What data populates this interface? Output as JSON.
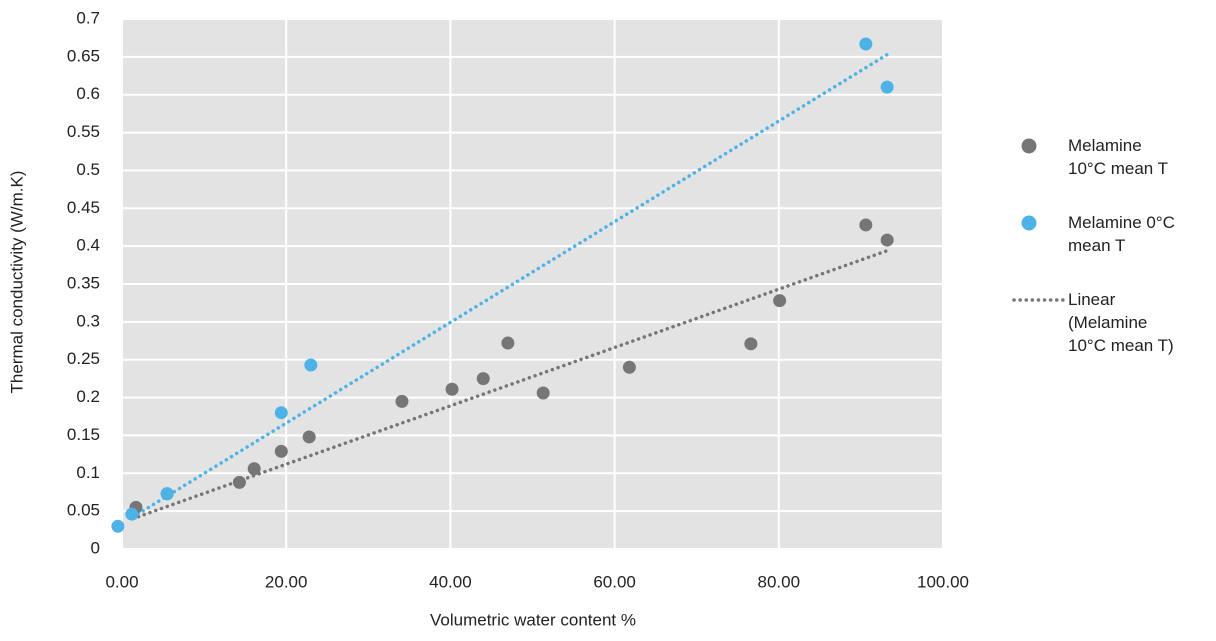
{
  "chart_data": {
    "type": "scatter",
    "xlabel": "Volumetric water content %",
    "ylabel": "Thermal conductivity (W/m.K)",
    "xlim": [
      0,
      100
    ],
    "xticks": [
      {
        "value": 0,
        "label": "0.00"
      },
      {
        "value": 20,
        "label": "20.00"
      },
      {
        "value": 40,
        "label": "40.00"
      },
      {
        "value": 60,
        "label": "60.00"
      },
      {
        "value": 80,
        "label": "80.00"
      },
      {
        "value": 100,
        "label": "100.00"
      }
    ],
    "ylim": [
      0,
      0.7
    ],
    "yticks": [
      0,
      0.05,
      0.1,
      0.15,
      0.2,
      0.25,
      0.3,
      0.35,
      0.4,
      0.45,
      0.5,
      0.55,
      0.6,
      0.65,
      0.7
    ],
    "grid": true,
    "legend": "right",
    "series": [
      {
        "name": "Melamine 10°C mean T",
        "color": "#767676",
        "x": [
          1.7,
          5.5,
          14.3,
          16.1,
          19.4,
          22.8,
          34.1,
          40.2,
          44.0,
          47.0,
          51.3,
          61.8,
          76.6,
          80.1,
          90.6,
          93.2
        ],
        "values": [
          0.055,
          0.073,
          0.088,
          0.106,
          0.129,
          0.148,
          0.195,
          0.211,
          0.225,
          0.272,
          0.206,
          0.24,
          0.271,
          0.328,
          0.428,
          0.408
        ]
      },
      {
        "name": "Melamine 0°C mean T",
        "color": "#4db3e6",
        "x": [
          -0.5,
          1.2,
          5.5,
          19.4,
          23.0,
          90.6,
          93.2
        ],
        "values": [
          0.03,
          0.046,
          0.073,
          0.18,
          0.243,
          0.667,
          0.61
        ]
      },
      {
        "name": "Linear (Melamine 10°C mean T)",
        "color": "#767676",
        "line": "dotted",
        "x": [
          1.3,
          93.2
        ],
        "values": [
          0.04,
          0.394
        ]
      },
      {
        "color": "#4db3e6",
        "line": "dotted",
        "x": [
          1.3,
          93.5
        ],
        "values": [
          0.042,
          0.655
        ]
      }
    ]
  }
}
